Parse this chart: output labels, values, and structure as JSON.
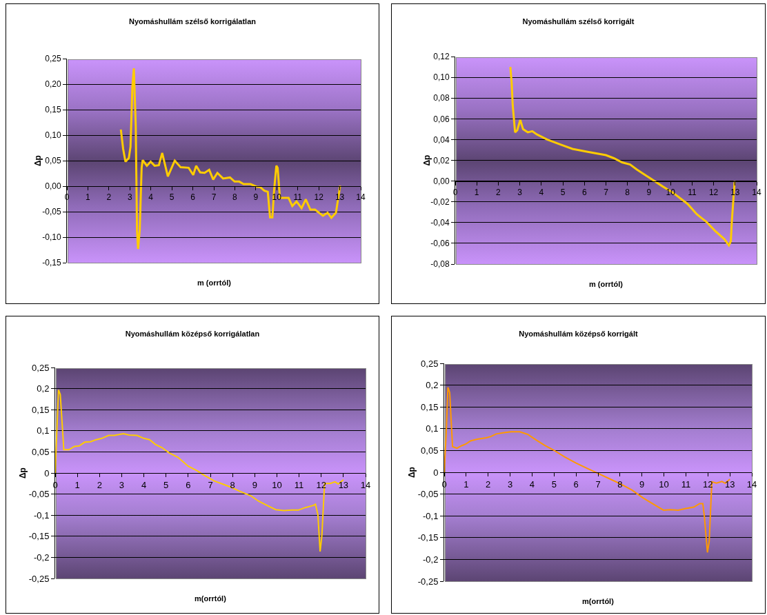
{
  "chart_data": [
    {
      "type": "line",
      "title": "Nyomáshullám szélső korrigálatlan",
      "xlabel": "m (orrtól)",
      "ylabel": "Δp",
      "grid": "y",
      "xlim": [
        0,
        14
      ],
      "xticks": [
        0,
        1,
        2,
        3,
        4,
        5,
        6,
        7,
        8,
        9,
        10,
        11,
        12,
        13,
        14
      ],
      "ylim": [
        -0.15,
        0.25
      ],
      "yticks": [
        {
          "value": -0.15,
          "label": "-0,15"
        },
        {
          "value": -0.1,
          "label": "-0,10"
        },
        {
          "value": -0.05,
          "label": "-0,05"
        },
        {
          "value": 0,
          "label": "0,00"
        },
        {
          "value": 0.05,
          "label": "0,05"
        },
        {
          "value": 0.1,
          "label": "0,10"
        },
        {
          "value": 0.15,
          "label": "0,15"
        },
        {
          "value": 0.2,
          "label": "0,20"
        },
        {
          "value": 0.25,
          "label": "0,25"
        }
      ],
      "series": [
        {
          "color": "#ffcc00",
          "x": [
            2.57,
            2.68,
            2.79,
            2.95,
            3.03,
            3.12,
            3.19,
            3.28,
            3.34,
            3.39,
            3.47,
            3.56,
            3.61,
            3.81,
            3.99,
            4.18,
            4.38,
            4.54,
            4.81,
            5.14,
            5.42,
            5.8,
            6.02,
            6.16,
            6.35,
            6.56,
            6.78,
            6.97,
            7.17,
            7.44,
            7.77,
            7.99,
            8.21,
            8.42,
            8.75,
            9.03,
            9.21,
            9.41,
            9.57,
            9.68,
            9.79,
            9.87,
            9.98,
            10.04,
            10.15,
            10.56,
            10.74,
            10.94,
            11.18,
            11.38,
            11.6,
            11.82,
            12.2,
            12.42,
            12.6,
            12.82,
            13.02
          ],
          "values": [
            0.111,
            0.073,
            0.048,
            0.055,
            0.077,
            0.195,
            0.231,
            0.118,
            -0.086,
            -0.123,
            -0.086,
            0.036,
            0.051,
            0.04,
            0.048,
            0.04,
            0.041,
            0.065,
            0.019,
            0.05,
            0.037,
            0.036,
            0.022,
            0.04,
            0.027,
            0.026,
            0.032,
            0.013,
            0.026,
            0.015,
            0.017,
            0.009,
            0.009,
            0.004,
            0.004,
            -0.001,
            -0.002,
            -0.009,
            -0.011,
            -0.061,
            -0.061,
            -0.009,
            0.04,
            0.036,
            -0.023,
            -0.023,
            -0.039,
            -0.03,
            -0.043,
            -0.026,
            -0.046,
            -0.046,
            -0.058,
            -0.052,
            -0.062,
            -0.052,
            0.001
          ]
        }
      ]
    },
    {
      "type": "line",
      "title": "Nyomáshullám szélső korrigált",
      "xlabel": "m (orrtól)",
      "ylabel": "Δp",
      "grid": "y",
      "xlim": [
        0,
        14
      ],
      "xticks": [
        0,
        1,
        2,
        3,
        4,
        5,
        6,
        7,
        8,
        9,
        10,
        11,
        12,
        13,
        14
      ],
      "ylim": [
        -0.08,
        0.12
      ],
      "yticks": [
        {
          "value": -0.08,
          "label": "-0,08"
        },
        {
          "value": -0.06,
          "label": "-0,06"
        },
        {
          "value": -0.04,
          "label": "-0,04"
        },
        {
          "value": -0.02,
          "label": "-0,02"
        },
        {
          "value": 0,
          "label": "0,00"
        },
        {
          "value": 0.02,
          "label": "0,02"
        },
        {
          "value": 0.04,
          "label": "0,04"
        },
        {
          "value": 0.06,
          "label": "0,06"
        },
        {
          "value": 0.08,
          "label": "0,08"
        },
        {
          "value": 0.1,
          "label": "0,10"
        },
        {
          "value": 0.12,
          "label": "0,12"
        }
      ],
      "series": [
        {
          "color": "#ffcc00",
          "x": [
            2.56,
            2.62,
            2.67,
            2.78,
            2.88,
            3.02,
            3.15,
            3.37,
            3.58,
            3.79,
            4.27,
            4.91,
            5.45,
            6.2,
            7.0,
            7.37,
            7.75,
            8.12,
            8.44,
            9.03,
            9.62,
            10.1,
            10.79,
            11.22,
            11.65,
            12.07,
            12.5,
            12.71,
            12.8,
            12.85,
            12.98
          ],
          "values": [
            0.11,
            0.095,
            0.073,
            0.047,
            0.049,
            0.059,
            0.05,
            0.047,
            0.048,
            0.045,
            0.04,
            0.035,
            0.031,
            0.028,
            0.025,
            0.022,
            0.018,
            0.016,
            0.011,
            0.003,
            -0.005,
            -0.011,
            -0.022,
            -0.032,
            -0.039,
            -0.048,
            -0.056,
            -0.062,
            -0.058,
            -0.038,
            0.0
          ]
        }
      ]
    },
    {
      "type": "line",
      "title": "Nyomáshullám középső korrigálatlan",
      "xlabel": "m(orrtól)",
      "ylabel": "Δp",
      "grid": "y",
      "xlim": [
        0,
        14
      ],
      "xticks": [
        0,
        1,
        2,
        3,
        4,
        5,
        6,
        7,
        8,
        9,
        10,
        11,
        12,
        13,
        14
      ],
      "ylim": [
        -0.25,
        0.25
      ],
      "yticks": [
        {
          "value": -0.25,
          "label": "-0,25"
        },
        {
          "value": -0.2,
          "label": "-0,2"
        },
        {
          "value": -0.15,
          "label": "-0,15"
        },
        {
          "value": -0.1,
          "label": "-0,1"
        },
        {
          "value": -0.05,
          "label": "-0,05"
        },
        0,
        {
          "value": 0.05,
          "label": "0,05"
        },
        {
          "value": 0.1,
          "label": "0,1"
        },
        {
          "value": 0.15,
          "label": "0,15"
        },
        {
          "value": 0.2,
          "label": "0,2"
        },
        {
          "value": 0.25,
          "label": "0,25"
        }
      ],
      "series": [
        {
          "color": "#ffcc00",
          "x": [
            0,
            0.15,
            0.23,
            0.39,
            0.62,
            0.87,
            1.08,
            1.33,
            1.59,
            1.85,
            2.1,
            2.41,
            2.67,
            3.08,
            3.33,
            3.69,
            4.0,
            4.26,
            4.51,
            4.82,
            5.13,
            5.54,
            6.0,
            6.41,
            6.67,
            7.18,
            7.59,
            7.9,
            8.31,
            8.82,
            9.18,
            9.64,
            9.95,
            10.31,
            10.67,
            10.97,
            11.28,
            11.64,
            11.74,
            11.85,
            11.95,
            12.03,
            12.15,
            12.41,
            12.62,
            12.77,
            13.0
          ],
          "values": [
            0,
            0.197,
            0.186,
            0.055,
            0.055,
            0.063,
            0.064,
            0.073,
            0.074,
            0.079,
            0.082,
            0.089,
            0.089,
            0.093,
            0.09,
            0.089,
            0.082,
            0.079,
            0.068,
            0.06,
            0.048,
            0.037,
            0.016,
            0.005,
            -0.004,
            -0.019,
            -0.027,
            -0.033,
            -0.043,
            -0.054,
            -0.067,
            -0.079,
            -0.087,
            -0.089,
            -0.088,
            -0.088,
            -0.082,
            -0.077,
            -0.074,
            -0.099,
            -0.186,
            -0.148,
            -0.025,
            -0.025,
            -0.021,
            -0.026,
            -0.016
          ]
        }
      ]
    },
    {
      "type": "line",
      "title": "Nyomáshullám középső korrigált",
      "xlabel": "m(orrtól)",
      "ylabel": "Δp",
      "grid": "y",
      "xlim": [
        0,
        14
      ],
      "xticks": [
        0,
        1,
        2,
        3,
        4,
        5,
        6,
        7,
        8,
        9,
        10,
        11,
        12,
        13,
        14
      ],
      "ylim": [
        -0.25,
        0.25
      ],
      "yticks": [
        {
          "value": -0.25,
          "label": "-0,25"
        },
        {
          "value": -0.2,
          "label": "-0,2"
        },
        {
          "value": -0.15,
          "label": "-0,15"
        },
        {
          "value": -0.1,
          "label": "-0,1"
        },
        {
          "value": -0.05,
          "label": "-0,05"
        },
        0,
        {
          "value": 0.05,
          "label": "0,05"
        },
        {
          "value": 0.1,
          "label": "0,1"
        },
        {
          "value": 0.15,
          "label": "0,15"
        },
        {
          "value": 0.2,
          "label": "0,2"
        },
        {
          "value": 0.25,
          "label": "0,25"
        }
      ],
      "series": [
        {
          "color": "#ff9900",
          "x": [
            0,
            0.09,
            0.17,
            0.25,
            0.38,
            0.58,
            0.79,
            0.99,
            1.2,
            1.5,
            1.91,
            2.12,
            2.37,
            2.73,
            3.04,
            3.44,
            3.8,
            4.16,
            4.57,
            4.98,
            5.49,
            6.0,
            6.51,
            7.02,
            7.53,
            8.04,
            8.55,
            9.06,
            9.58,
            9.98,
            10.29,
            10.65,
            11.0,
            11.36,
            11.62,
            11.77,
            11.84,
            11.98,
            12.06,
            12.18,
            12.39,
            12.64,
            12.79,
            13.0
          ],
          "values": [
            0,
            0.088,
            0.195,
            0.183,
            0.059,
            0.055,
            0.061,
            0.065,
            0.072,
            0.076,
            0.079,
            0.082,
            0.088,
            0.091,
            0.093,
            0.093,
            0.087,
            0.075,
            0.062,
            0.051,
            0.035,
            0.021,
            0.009,
            -0.003,
            -0.015,
            -0.027,
            -0.041,
            -0.059,
            -0.075,
            -0.087,
            -0.086,
            -0.087,
            -0.083,
            -0.08,
            -0.072,
            -0.072,
            -0.101,
            -0.184,
            -0.159,
            -0.022,
            -0.025,
            -0.021,
            -0.025,
            -0.016
          ]
        }
      ]
    }
  ]
}
